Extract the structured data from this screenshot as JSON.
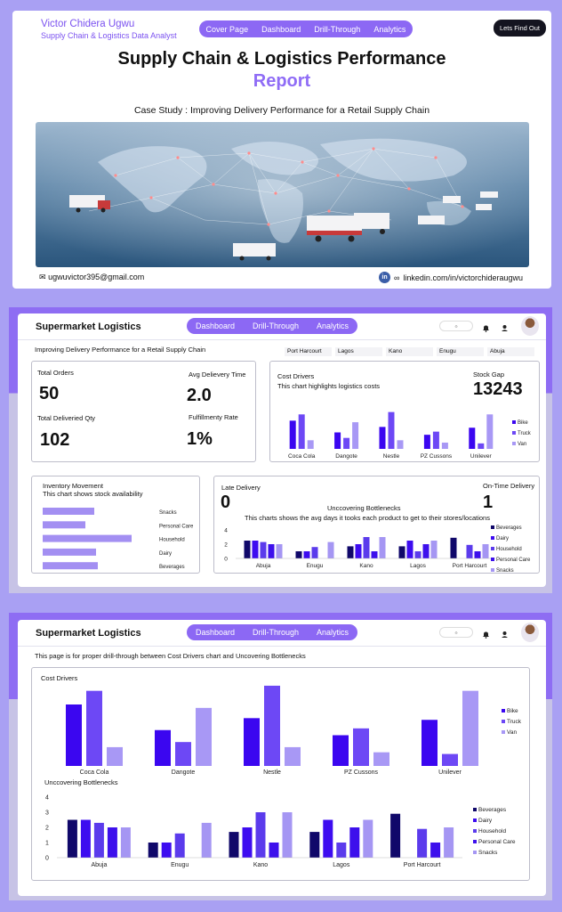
{
  "colors": {
    "bike": "#3b06f0",
    "truck": "#6d48f5",
    "van": "#a898f5",
    "beverages": "#10086a",
    "dairy": "#3d0cf0",
    "household": "#5b3bec",
    "personal_care": "#3d10ec",
    "snacks": "#a596f3",
    "inventory_bar": "#a38ff2",
    "accent": "#8c68f4"
  },
  "cover": {
    "author_name": "Victor Chidera Ugwu",
    "author_role": "Supply Chain & Logistics Data Analyst",
    "nav": [
      "Cover Page",
      "Dashboard",
      "Drill-Through",
      "Analytics"
    ],
    "cta": "Lets Find Out",
    "title_line1": "Supply Chain & Logistics Performance",
    "title_line2": "Report",
    "case_study": "Case Study : Improving Delivery Performance for a Retail Supply Chain",
    "email_icon": "mail-icon",
    "email": "ugwuvictor395@gmail.com",
    "linkedin_icon": "linkedin-icon",
    "linkedin": "linkedin.com/in/victorchideraugwu"
  },
  "dashboard": {
    "brand": "Supermarket Logistics",
    "nav": [
      "Dashboard",
      "Drill-Through",
      "Analytics"
    ],
    "subtitle": "Improving Delivery Performance for a Retail Supply Chain",
    "cities": [
      "Port Harcourt",
      "Lagos",
      "Kano",
      "Enugu",
      "Abuja"
    ],
    "kpis": {
      "total_orders_label": "Total Orders",
      "total_orders": "50",
      "avg_delivery_label": "Avg Delievery Time",
      "avg_delivery": "2.0",
      "delivered_label": "Total Deliveried Qty",
      "delivered": "102",
      "fulfillment_label": "Fulfillmenty Rate",
      "fulfillment": "1%"
    },
    "cost_title": "Cost Drivers",
    "cost_sub": "This chart highlights logistics costs",
    "stock_gap_label": "Stock Gap",
    "stock_gap": "13243",
    "inventory_title": "Inventory Movement",
    "inventory_sub": "This chart shows stock availability",
    "late_label": "Late Delivery",
    "late_value": "0",
    "ontime_label": "On-Time Delivery",
    "ontime_value": "1",
    "bottleneck_title": "Unccovering Bottlenecks",
    "bottleneck_sub": "This charts shows the avg days it tooks each product to get to their stores/locations"
  },
  "drill": {
    "brand": "Supermarket Logistics",
    "nav": [
      "Dashboard",
      "Drill-Through",
      "Analytics"
    ],
    "subtitle": "This page is for proper drill-through between Cost Drivers chart and Uncovering Bottlenecks",
    "cost_title": "Cost Drivers",
    "bottleneck_title": "Unccovering Bottlenecks"
  },
  "chart_data": [
    {
      "id": "cost-drivers",
      "type": "bar",
      "title": "Cost Drivers",
      "categories": [
        "Coca Cola",
        "Dangote",
        "Nestle",
        "PZ Cussons",
        "Unilever"
      ],
      "series": [
        {
          "name": "Bike",
          "values": [
            3.6,
            2.1,
            2.8,
            1.8,
            2.7
          ]
        },
        {
          "name": "Truck",
          "values": [
            4.4,
            1.4,
            4.7,
            2.2,
            0.7
          ]
        },
        {
          "name": "Van",
          "values": [
            1.1,
            3.4,
            1.1,
            0.8,
            4.4
          ]
        }
      ],
      "legend": "right"
    },
    {
      "id": "inventory-movement",
      "type": "bar",
      "orientation": "horizontal",
      "title": "Inventory Movement",
      "categories": [
        "Snacks",
        "Personal Care",
        "Household",
        "Dairy",
        "Beverages"
      ],
      "values": [
        58,
        48,
        100,
        60,
        62
      ]
    },
    {
      "id": "uncovering-bottlenecks",
      "type": "bar",
      "title": "Unccovering Bottlenecks",
      "categories": [
        "Abuja",
        "Enugu",
        "Kano",
        "Lagos",
        "Port Harcourt"
      ],
      "series": [
        {
          "name": "Beverages",
          "values": [
            2.5,
            1.0,
            1.7,
            1.7,
            2.9
          ]
        },
        {
          "name": "Dairy",
          "values": [
            2.5,
            1.0,
            2.0,
            2.5,
            0
          ]
        },
        {
          "name": "Household",
          "values": [
            2.3,
            1.6,
            3.0,
            1.0,
            1.9
          ]
        },
        {
          "name": "Personal Care",
          "values": [
            2.0,
            0,
            1.0,
            2.0,
            1.0
          ]
        },
        {
          "name": "Snacks",
          "values": [
            2.0,
            2.3,
            3.0,
            2.5,
            2.0
          ]
        }
      ],
      "y_ticks": [
        "0",
        "2",
        "4"
      ],
      "drill_y_ticks": [
        "0",
        "1",
        "2",
        "3",
        "4"
      ],
      "ylim": [
        0,
        4
      ],
      "legend": "right"
    }
  ]
}
